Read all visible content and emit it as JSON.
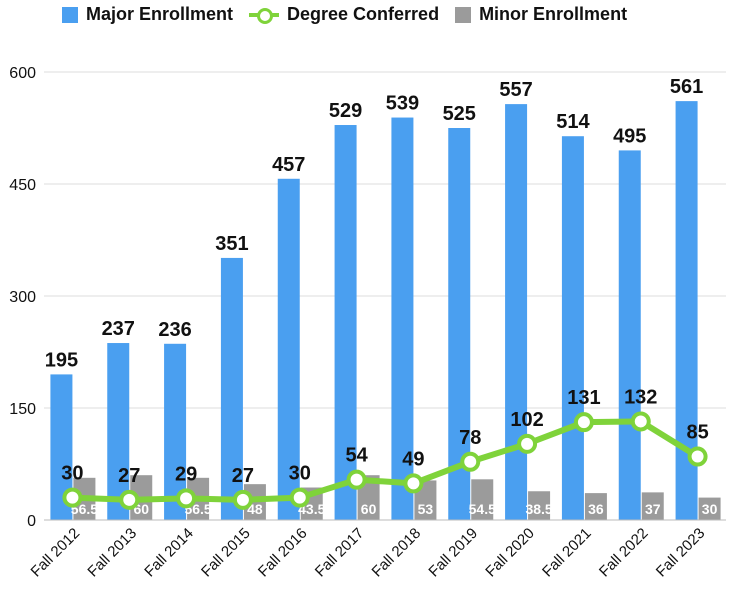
{
  "chart_data": {
    "type": "bar",
    "categories": [
      "Fall 2012",
      "Fall 2013",
      "Fall 2014",
      "Fall 2015",
      "Fall 2016",
      "Fall 2017",
      "Fall 2018",
      "Fall 2019",
      "Fall 2020",
      "Fall 2021",
      "Fall 2022",
      "Fall 2023"
    ],
    "series": [
      {
        "name": "Major Enrollment",
        "type": "bar",
        "color": "#4a9ff0",
        "values": [
          195,
          237,
          236,
          351,
          457,
          529,
          539,
          525,
          557,
          514,
          495,
          561
        ]
      },
      {
        "name": "Degree Conferred",
        "type": "line",
        "color": "#7fd33a",
        "values": [
          30,
          27,
          29,
          27,
          30,
          54,
          49,
          78,
          102,
          131,
          132,
          85
        ]
      },
      {
        "name": "Minor Enrollment",
        "type": "bar",
        "color": "#9b9b9b",
        "values": [
          56.5,
          60,
          56.5,
          48,
          43.5,
          60,
          53,
          54.5,
          38.5,
          36,
          37,
          30
        ],
        "labels": [
          "56.5",
          "60",
          "56.5",
          "48",
          "43.5",
          "60",
          "53",
          "54.5",
          "38.5",
          "36",
          "37",
          "30"
        ]
      }
    ],
    "ylim": [
      0,
      600
    ],
    "yticks": [
      0,
      150,
      300,
      450,
      600
    ],
    "grid": true,
    "legend_position": "top",
    "title": "",
    "xlabel": "",
    "ylabel": ""
  }
}
